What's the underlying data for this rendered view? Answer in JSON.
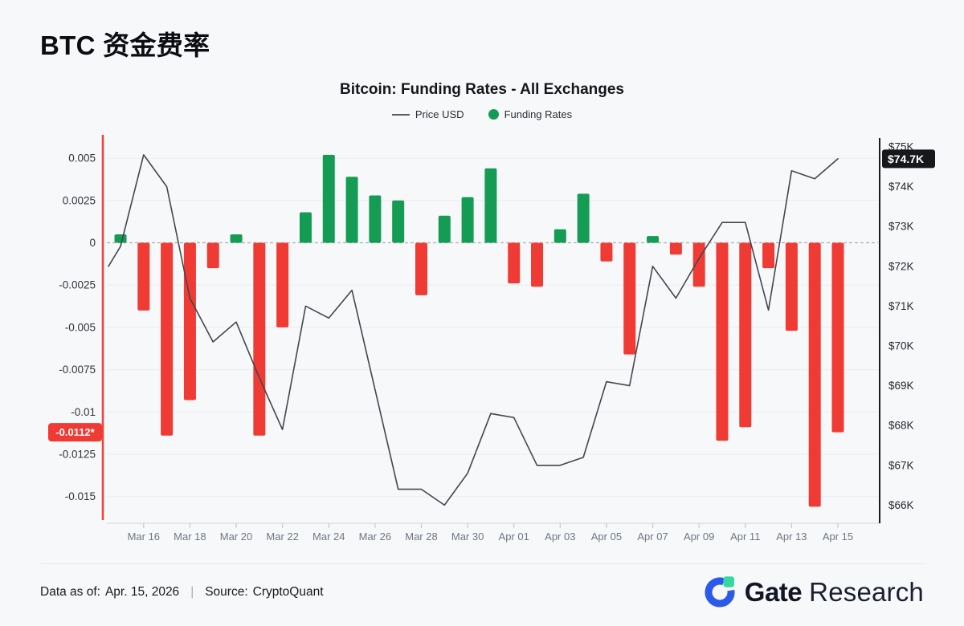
{
  "page": {
    "title": "BTC 资金费率"
  },
  "chart": {
    "title": "Bitcoin: Funding Rates - All Exchanges",
    "legend": {
      "price_label": "Price USD",
      "funding_label": "Funding Rates"
    }
  },
  "chart_data": {
    "type": "combo",
    "title": "Bitcoin: Funding Rates - All Exchanges",
    "grid": "horizontal",
    "legend_position": "top",
    "categories": [
      "Mar 15",
      "Mar 16",
      "Mar 17",
      "Mar 18",
      "Mar 19",
      "Mar 20",
      "Mar 21",
      "Mar 22",
      "Mar 23",
      "Mar 24",
      "Mar 25",
      "Mar 26",
      "Mar 27",
      "Mar 28",
      "Mar 29",
      "Mar 30",
      "Mar 31",
      "Apr 01",
      "Apr 02",
      "Apr 03",
      "Apr 04",
      "Apr 05",
      "Apr 06",
      "Apr 07",
      "Apr 08",
      "Apr 09",
      "Apr 10",
      "Apr 11",
      "Apr 12",
      "Apr 13",
      "Apr 14",
      "Apr 15"
    ],
    "series": [
      {
        "name": "Funding Rates",
        "type": "bar",
        "axis": "left",
        "values": [
          0.0005,
          -0.004,
          -0.0114,
          -0.0093,
          -0.0015,
          0.0005,
          -0.0114,
          -0.005,
          0.0018,
          0.0052,
          0.0039,
          0.0028,
          0.0025,
          -0.0031,
          0.0016,
          0.0027,
          0.0044,
          -0.0024,
          -0.0026,
          0.0008,
          0.0029,
          -0.0011,
          -0.0066,
          0.0004,
          -0.0007,
          -0.0026,
          -0.0117,
          -0.0109,
          -0.0015,
          -0.0052,
          -0.0156,
          -0.0112
        ]
      },
      {
        "name": "Price USD",
        "type": "line",
        "axis": "right",
        "unit": "thousand USD",
        "values": [
          72.5,
          74.8,
          74.0,
          71.2,
          70.1,
          70.6,
          69.2,
          67.9,
          71.0,
          70.7,
          71.4,
          68.9,
          66.4,
          66.4,
          66.0,
          66.8,
          68.3,
          68.2,
          67.0,
          67.0,
          67.2,
          69.1,
          69.0,
          72.0,
          71.2,
          72.2,
          73.1,
          73.1,
          70.9,
          74.4,
          74.2,
          74.7
        ]
      }
    ],
    "price_line_edge_start": 72.0,
    "left_axis": {
      "tick_labels": [
        "0.005",
        "0.0025",
        "0",
        "-0.0025",
        "-0.005",
        "-0.0075",
        "-0.01",
        "-0.0125",
        "-0.015"
      ],
      "tick_values": [
        0.005,
        0.0025,
        0,
        -0.0025,
        -0.005,
        -0.0075,
        -0.01,
        -0.0125,
        -0.015
      ],
      "range": [
        -0.016,
        0.0063
      ],
      "current_label": "-0.0112*",
      "current_value": -0.0112
    },
    "right_axis": {
      "tick_labels": [
        "$75K",
        "$74K",
        "$73K",
        "$72K",
        "$71K",
        "$70K",
        "$69K",
        "$68K",
        "$67K",
        "$66K"
      ],
      "tick_values": [
        75,
        74,
        73,
        72,
        71,
        70,
        69,
        68,
        67,
        66
      ],
      "range": [
        65.6,
        75.3
      ],
      "current_label": "$74.7K",
      "current_value": 74.7
    },
    "x_axis": {
      "tick_labels": [
        "Mar 16",
        "Mar 18",
        "Mar 20",
        "Mar 22",
        "Mar 24",
        "Mar 26",
        "Mar 28",
        "Mar 30",
        "Apr 01",
        "Apr 03",
        "Apr 05",
        "Apr 07",
        "Apr 09",
        "Apr 11",
        "Apr 13",
        "Apr 15"
      ],
      "first_tick_index": 1,
      "tick_step": 2
    }
  },
  "footer": {
    "data_as_of_label": "Data as of:",
    "data_as_of_value": "Apr. 15, 2026",
    "separator": "|",
    "source_label": "Source:",
    "source_value": "CryptoQuant",
    "brand_bold": "Gate",
    "brand_regular": "Research"
  },
  "colors": {
    "positive_bar": "#149C55",
    "negative_bar": "#EF3B33",
    "price_line": "#43464C",
    "left_axis_line": "#EE4238",
    "right_axis_line": "#1A1C20",
    "x_axis_line": "#D9DCE1",
    "gridline": "#EAECF0",
    "zero_dash": "#A9AEB7",
    "left_tick_text": "#2F333A",
    "right_tick_text": "#24272D",
    "x_tick_text": "#6E7683",
    "funding_badge_bg": "#EF3B33",
    "price_badge_bg": "#17181C",
    "badge_text": "#FFFFFF",
    "brand_blue": "#2B59E8",
    "brand_green": "#35D9A0"
  }
}
